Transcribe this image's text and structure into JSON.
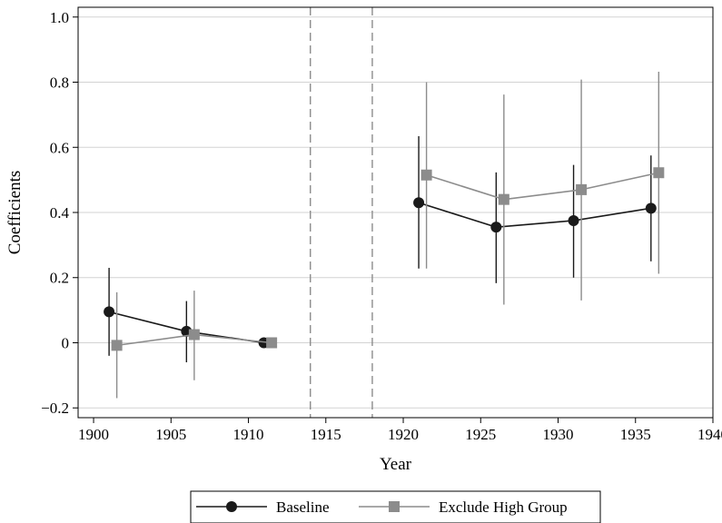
{
  "chart_data": {
    "type": "line",
    "xlabel": "Year",
    "ylabel": "Coefficients",
    "xlim": [
      1899,
      1940
    ],
    "ylim": [
      -0.23,
      1.03
    ],
    "x_ticks": [
      1900,
      1905,
      1910,
      1915,
      1920,
      1925,
      1930,
      1935,
      1940
    ],
    "y_ticks": [
      -0.2,
      0,
      0.2,
      0.4,
      0.6,
      0.8,
      1.0
    ],
    "x_tick_labels": [
      "1900",
      "1905",
      "1910",
      "1915",
      "1920",
      "1925",
      "1930",
      "1935",
      "1940"
    ],
    "y_tick_labels": [
      "−0.2",
      "0",
      "0.2",
      "0.4",
      "0.6",
      "0.8",
      "1.0"
    ],
    "grid": "horizontal",
    "vlines": [
      1914,
      1918
    ],
    "legend_position": "bottom",
    "series": [
      {
        "name": "Baseline",
        "color": "#1a1a1a",
        "marker": "circle",
        "segments": [
          [
            {
              "x": 1901,
              "y": 0.095,
              "ci": [
                -0.04,
                0.23
              ]
            },
            {
              "x": 1906,
              "y": 0.035,
              "ci": [
                -0.06,
                0.128
              ]
            },
            {
              "x": 1911,
              "y": 0.0,
              "ci": [
                0.0,
                0.0
              ]
            }
          ],
          [
            {
              "x": 1921,
              "y": 0.43,
              "ci": [
                0.228,
                0.634
              ]
            },
            {
              "x": 1926,
              "y": 0.355,
              "ci": [
                0.183,
                0.523
              ]
            },
            {
              "x": 1931,
              "y": 0.375,
              "ci": [
                0.2,
                0.546
              ]
            },
            {
              "x": 1936,
              "y": 0.413,
              "ci": [
                0.25,
                0.575
              ]
            }
          ]
        ]
      },
      {
        "name": "Exclude High Group",
        "color": "#8c8c8c",
        "marker": "square",
        "segments": [
          [
            {
              "x": 1901.5,
              "y": -0.008,
              "ci": [
                -0.17,
                0.155
              ]
            },
            {
              "x": 1906.5,
              "y": 0.025,
              "ci": [
                -0.115,
                0.16
              ]
            },
            {
              "x": 1911.5,
              "y": 0.0,
              "ci": [
                0.0,
                0.0
              ]
            }
          ],
          [
            {
              "x": 1921.5,
              "y": 0.515,
              "ci": [
                0.228,
                0.8
              ]
            },
            {
              "x": 1926.5,
              "y": 0.44,
              "ci": [
                0.117,
                0.762
              ]
            },
            {
              "x": 1931.5,
              "y": 0.47,
              "ci": [
                0.13,
                0.808
              ]
            },
            {
              "x": 1936.5,
              "y": 0.522,
              "ci": [
                0.212,
                0.832
              ]
            }
          ]
        ]
      }
    ]
  }
}
